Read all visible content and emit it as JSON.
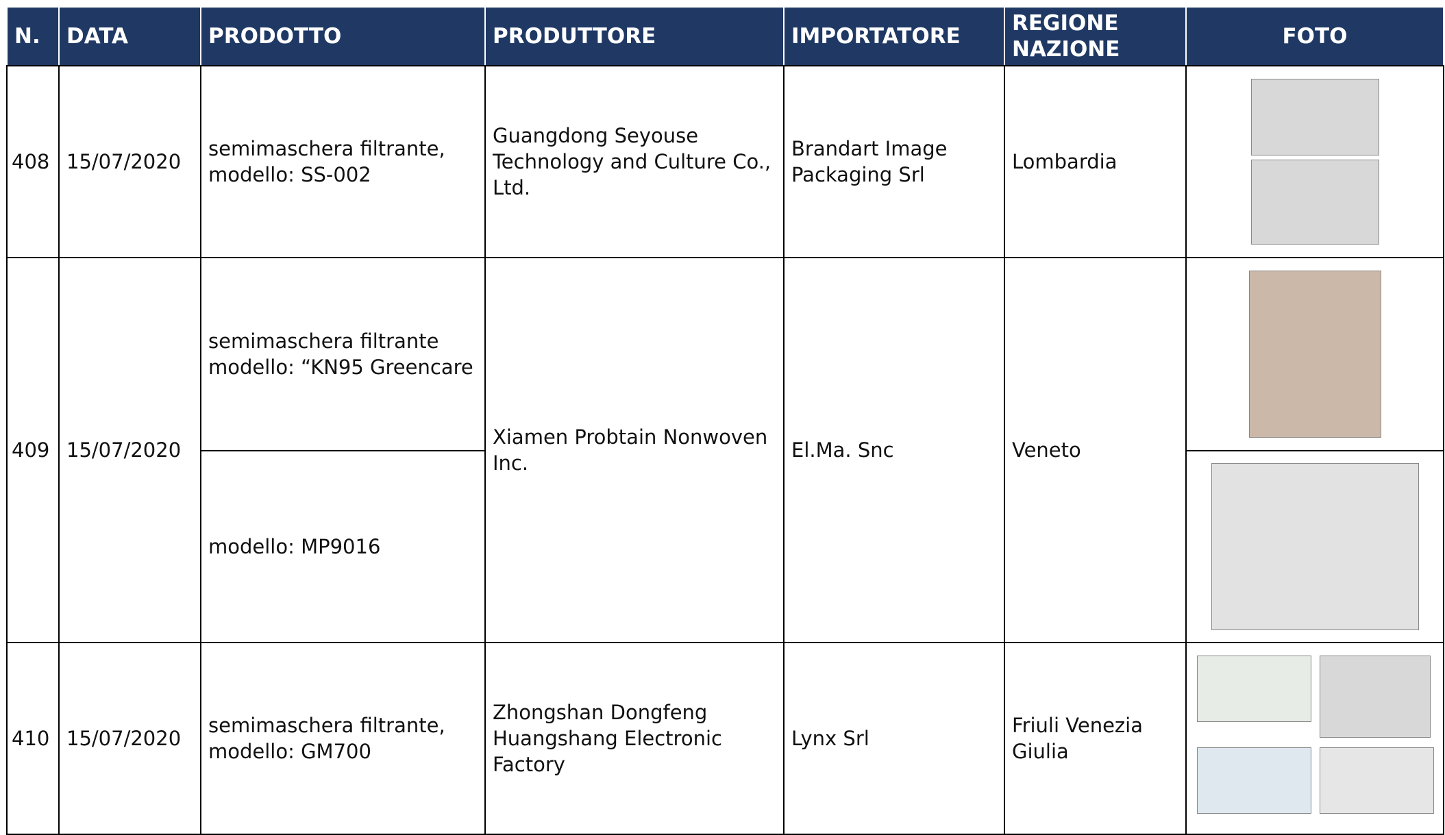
{
  "header": {
    "columns": [
      "N.",
      "DATA",
      "PRODOTTO",
      "PRODUTTORE",
      "IMPORTATORE",
      "REGIONE NAZIONE",
      "FOTO"
    ]
  },
  "rows": [
    {
      "n": "408",
      "data": "15/07/2020",
      "prodotto": [
        "semimaschera filtrante, modello: SS-002"
      ],
      "produttore": "Guangdong Seyouse Technology and Culture Co., Ltd.",
      "importatore": "Brandart Image Packaging Srl",
      "regione": "Lombardia"
    },
    {
      "n": "409",
      "data": "15/07/2020",
      "prodotto": [
        "semimaschera filtrante modello: “KN95 Greencare",
        "modello: MP9016"
      ],
      "produttore": "Xiamen Probtain Nonwoven Inc.",
      "importatore": "El.Ma. Snc",
      "regione": "Veneto"
    },
    {
      "n": "410",
      "data": "15/07/2020",
      "prodotto": [
        "semimaschera filtrante, modello: GM700"
      ],
      "produttore": "Zhongshan Dongfeng Huangshang Electronic Factory",
      "importatore": "Lynx Srl",
      "regione": "Friuli Venezia Giulia"
    }
  ]
}
